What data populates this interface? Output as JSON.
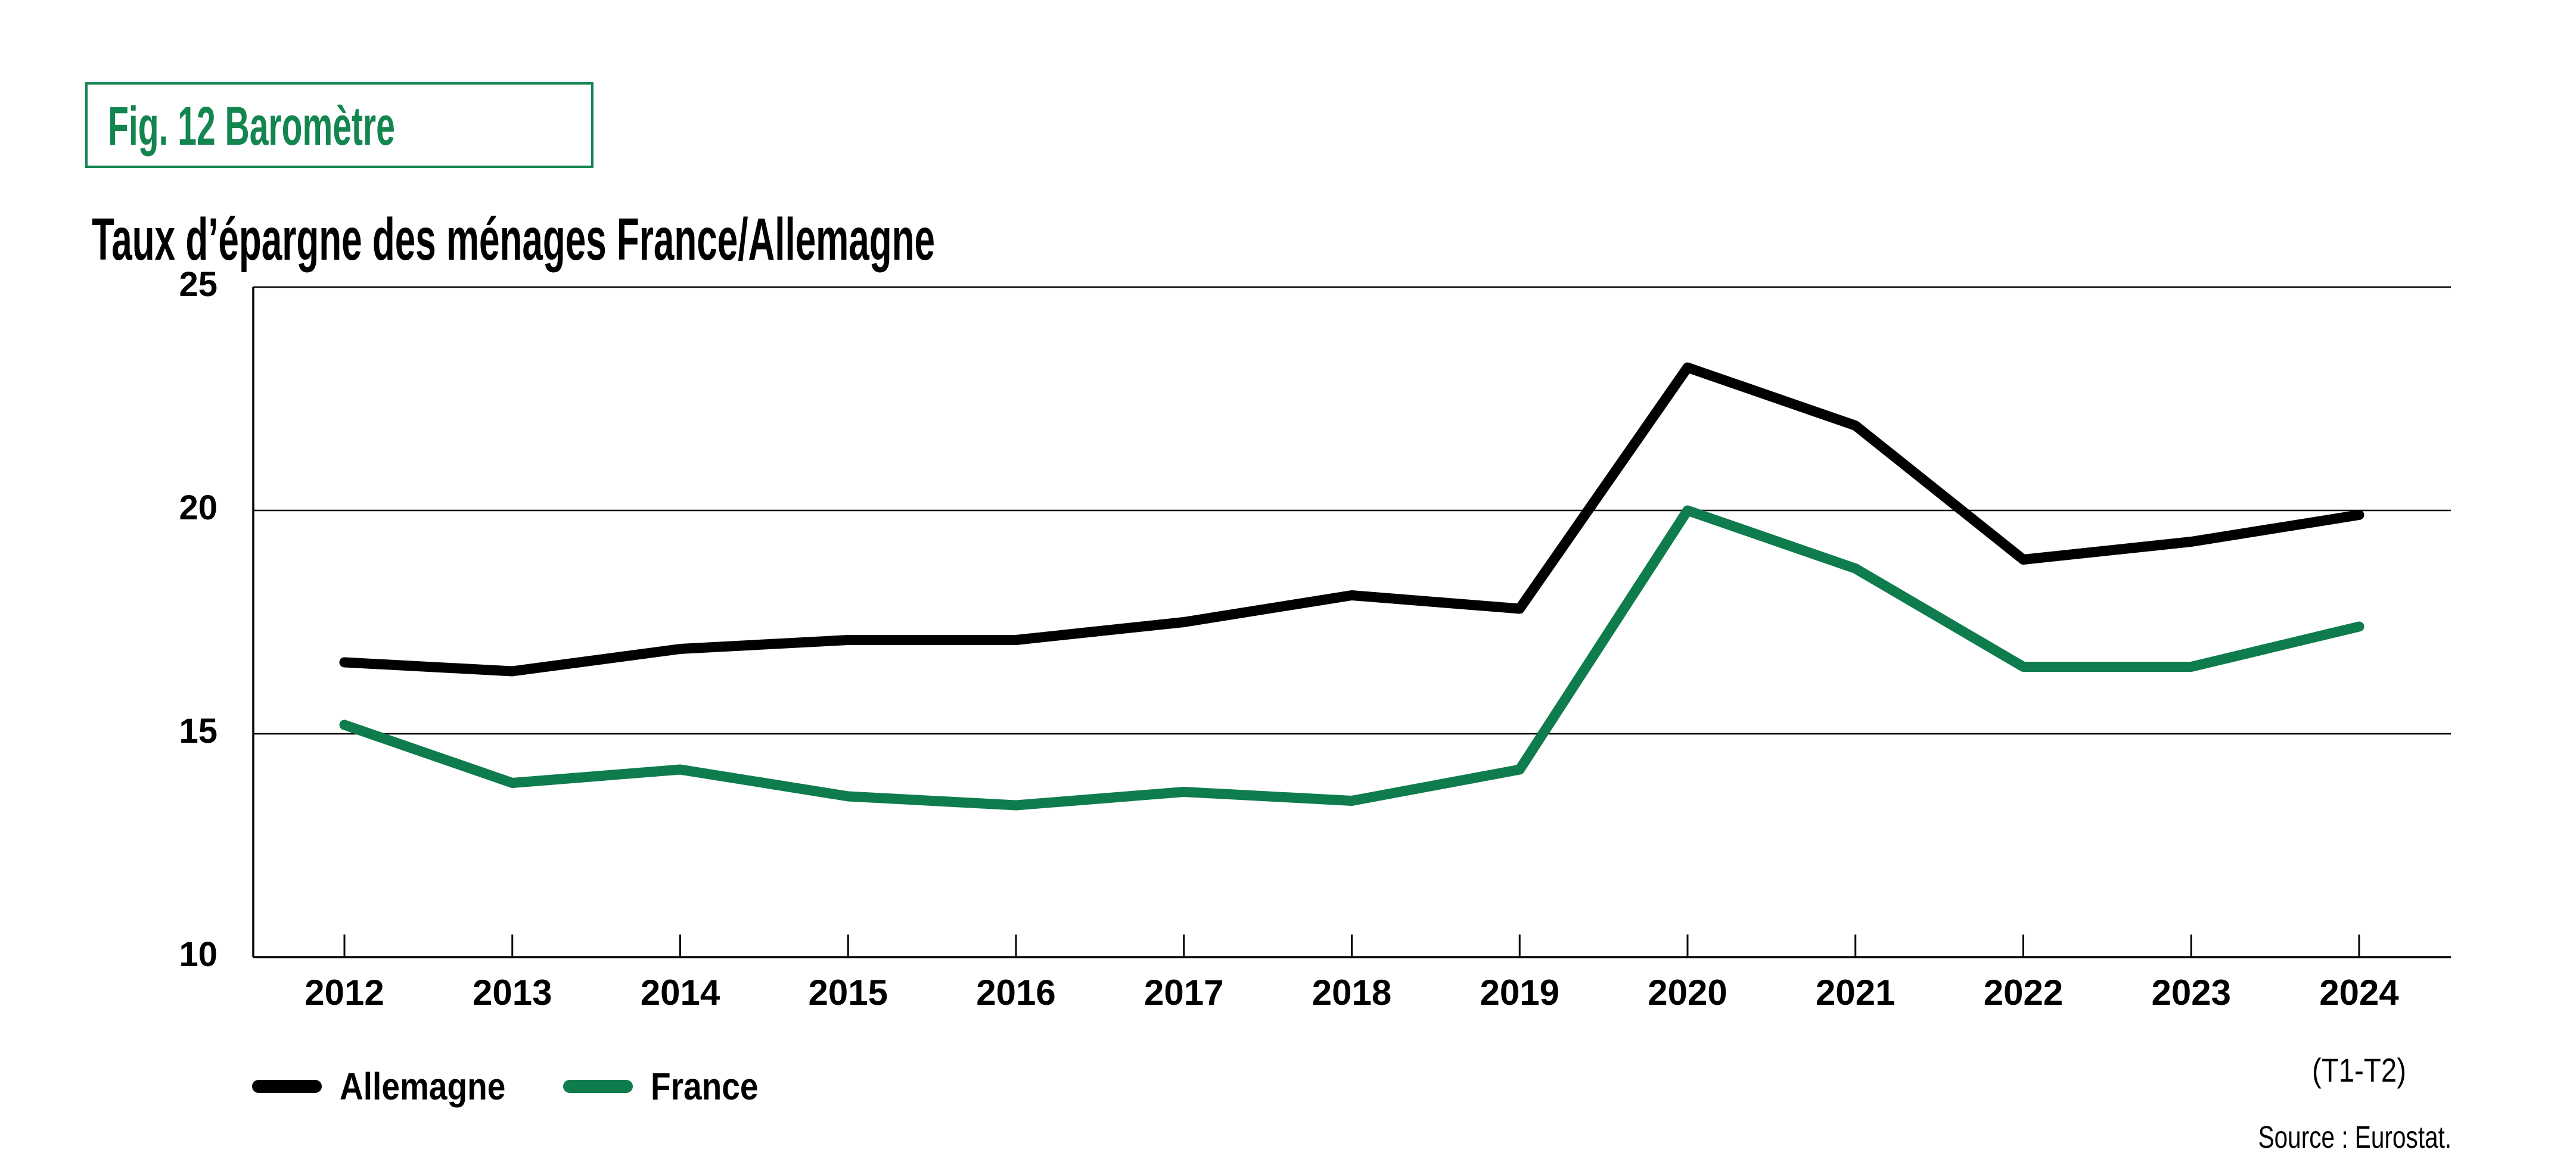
{
  "figure": {
    "tag_label": "Fig. 12 Baromètre",
    "tag_color": "#13854F",
    "title": "Taux d’épargne des ménages France/Allemagne",
    "source": "Source : Eurostat."
  },
  "chart_data": {
    "type": "line",
    "title": "Taux d’épargne des ménages France/Allemagne",
    "x": [
      "2012",
      "2013",
      "2014",
      "2015",
      "2016",
      "2017",
      "2018",
      "2019",
      "2020",
      "2021",
      "2022",
      "2023",
      "2024"
    ],
    "x_last_tick_note": "(T1-T2)",
    "series": [
      {
        "name": "Allemagne",
        "color": "#000000",
        "values": [
          16.6,
          16.4,
          16.9,
          17.1,
          17.1,
          17.5,
          18.1,
          17.8,
          23.2,
          21.9,
          18.9,
          19.3,
          19.9
        ]
      },
      {
        "name": "France",
        "color": "#0E7C4D",
        "values": [
          15.2,
          13.9,
          14.2,
          13.6,
          13.4,
          13.7,
          13.5,
          14.2,
          20.0,
          18.7,
          16.5,
          16.5,
          17.4
        ]
      }
    ],
    "ylim": [
      10,
      25
    ],
    "yticks": [
      10,
      15,
      20,
      25
    ],
    "grid": "horizontal-only",
    "legend_position": "bottom-left",
    "xlabel": "",
    "ylabel": ""
  }
}
